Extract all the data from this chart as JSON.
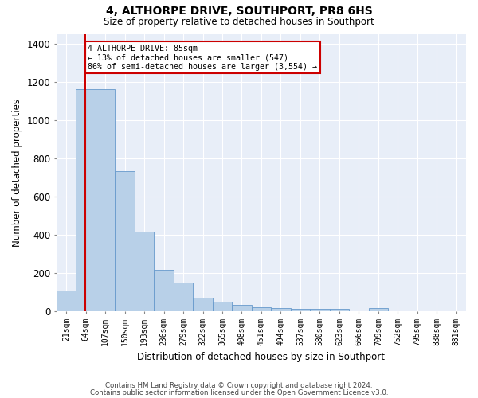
{
  "title": "4, ALTHORPE DRIVE, SOUTHPORT, PR8 6HS",
  "subtitle": "Size of property relative to detached houses in Southport",
  "xlabel": "Distribution of detached houses by size in Southport",
  "ylabel": "Number of detached properties",
  "categories": [
    "21sqm",
    "64sqm",
    "107sqm",
    "150sqm",
    "193sqm",
    "236sqm",
    "279sqm",
    "322sqm",
    "365sqm",
    "408sqm",
    "451sqm",
    "494sqm",
    "537sqm",
    "580sqm",
    "623sqm",
    "666sqm",
    "709sqm",
    "752sqm",
    "795sqm",
    "838sqm",
    "881sqm"
  ],
  "bar_values": [
    108,
    1160,
    1160,
    730,
    415,
    215,
    150,
    70,
    50,
    32,
    20,
    15,
    13,
    13,
    13,
    0,
    15,
    0,
    0,
    0,
    0
  ],
  "bar_color": "#b8d0e8",
  "bar_edge_color": "#6699cc",
  "annotation_box_color": "#cc0000",
  "property_line_color": "#cc0000",
  "annotation_text": "4 ALTHORPE DRIVE: 85sqm\n← 13% of detached houses are smaller (547)\n86% of semi-detached houses are larger (3,554) →",
  "footer1": "Contains HM Land Registry data © Crown copyright and database right 2024.",
  "footer2": "Contains public sector information licensed under the Open Government Licence v3.0.",
  "ylim": [
    0,
    1450
  ],
  "yticks": [
    0,
    200,
    400,
    600,
    800,
    1000,
    1200,
    1400
  ],
  "fig_bg": "#ffffff",
  "axes_bg": "#e8eef8",
  "grid_color": "#ffffff"
}
